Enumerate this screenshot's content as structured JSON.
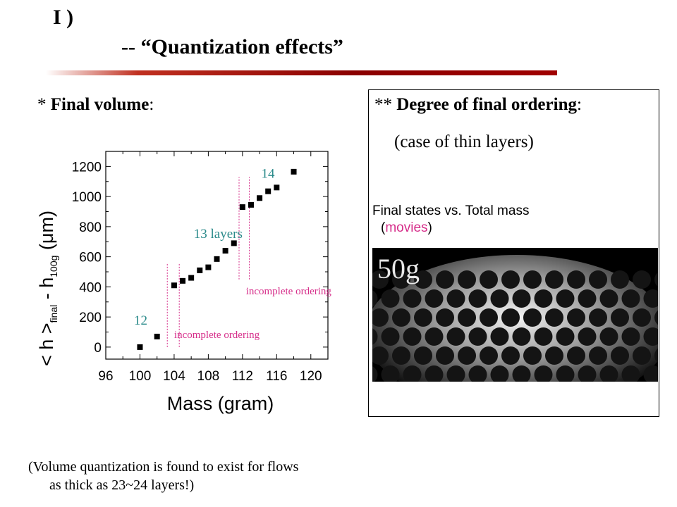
{
  "title": {
    "line1": "I )",
    "line2": "-- “Quantization effects”"
  },
  "left_heading": {
    "prefix": "* ",
    "bold": "Final volume",
    "suffix": ":"
  },
  "panel": {
    "heading_prefix": "** ",
    "heading_bold": "Degree of final ordering",
    "heading_suffix": ":",
    "subheading": "(case of thin layers)",
    "final_states_prefix": "Final states vs. Total mass",
    "final_states_open": "(",
    "movies_label": "movies",
    "final_states_close": ")",
    "video_label": "50g"
  },
  "footnote": {
    "line1": "(Volume quantization is found to exist for flows",
    "line2": "as thick as  23~24 layers!)"
  },
  "chart_data": {
    "type": "scatter",
    "xlabel": "Mass   (gram)",
    "ylabel_main": "< h >",
    "ylabel_sub1": "final",
    "ylabel_minus": "- h",
    "ylabel_sub2": "100g",
    "ylabel_unit": "(μm)",
    "xlim": [
      96,
      122
    ],
    "ylim": [
      -80,
      1300
    ],
    "x_ticks": [
      96,
      100,
      104,
      108,
      112,
      116,
      120
    ],
    "y_ticks": [
      0,
      200,
      400,
      600,
      800,
      1000,
      1200
    ],
    "points": [
      {
        "x": 100,
        "y": 0
      },
      {
        "x": 102,
        "y": 70
      },
      {
        "x": 104,
        "y": 410
      },
      {
        "x": 105,
        "y": 440
      },
      {
        "x": 106,
        "y": 460
      },
      {
        "x": 107,
        "y": 510
      },
      {
        "x": 108,
        "y": 530
      },
      {
        "x": 109,
        "y": 585
      },
      {
        "x": 110,
        "y": 640
      },
      {
        "x": 111,
        "y": 690
      },
      {
        "x": 112,
        "y": 930
      },
      {
        "x": 113,
        "y": 945
      },
      {
        "x": 114,
        "y": 990
      },
      {
        "x": 115,
        "y": 1035
      },
      {
        "x": 116,
        "y": 1060
      },
      {
        "x": 118,
        "y": 1165
      }
    ],
    "annotations": [
      {
        "text": "12",
        "x": 99.3,
        "y": 150,
        "color": "#2a8a8a"
      },
      {
        "text": "13 layers",
        "x": 106.3,
        "y": 725,
        "color": "#2a8a8a"
      },
      {
        "text": "14",
        "x": 114.2,
        "y": 1125,
        "color": "#2a8a8a"
      },
      {
        "text": "incomplete ordering",
        "x": 104,
        "y": 60,
        "color": "#d62e8a"
      },
      {
        "text": "incomplete ordering",
        "x": 112.4,
        "y": 350,
        "color": "#d62e8a"
      }
    ],
    "boundary_lines": [
      {
        "x": 103.2,
        "y0": 0,
        "y1": 560
      },
      {
        "x": 104.6,
        "y0": 0,
        "y1": 560
      },
      {
        "x": 111.6,
        "y0": 450,
        "y1": 1130
      },
      {
        "x": 112.8,
        "y0": 450,
        "y1": 1130
      }
    ],
    "line_color": "#d62e8a"
  }
}
